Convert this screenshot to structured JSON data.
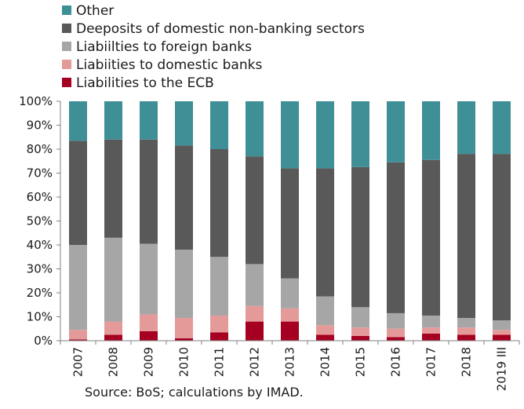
{
  "chart_data": {
    "type": "bar",
    "stacked": true,
    "percent": true,
    "categories": [
      "2007",
      "2008",
      "2009",
      "2010",
      "2011",
      "2012",
      "2013",
      "2014",
      "2015",
      "2016",
      "2017",
      "2018",
      "2019 III"
    ],
    "series": [
      {
        "name": "Liabilities to the ECB",
        "color": "#a50021",
        "values": [
          0.5,
          2.5,
          4,
          1,
          3.5,
          8,
          8,
          2.5,
          2,
          1.5,
          3,
          2.5,
          2.5
        ]
      },
      {
        "name": "Liabiities to domestic banks",
        "color": "#e59a9a",
        "values": [
          4,
          5.5,
          7,
          8.5,
          7,
          6.5,
          5.5,
          4,
          3.5,
          3.5,
          2.5,
          3,
          2
        ]
      },
      {
        "name": "Liabiilties to foreign banks",
        "color": "#a6a6a6",
        "values": [
          35.5,
          35,
          29.5,
          28.5,
          24.5,
          17.5,
          12.5,
          12,
          8.5,
          6.5,
          5,
          4,
          4
        ]
      },
      {
        "name": "Deeposits of domestic non-banking sectors",
        "color": "#595959",
        "values": [
          43.5,
          41,
          43.5,
          43.5,
          45,
          45,
          46,
          53.5,
          58.5,
          63,
          65,
          68.5,
          69.5
        ]
      },
      {
        "name": "Other",
        "color": "#3f8f96",
        "values": [
          16.5,
          16,
          16,
          18.5,
          20,
          23,
          28,
          28,
          27.5,
          25.5,
          24.5,
          22,
          22
        ]
      }
    ],
    "legend_order": [
      "Other",
      "Deeposits of domestic non-banking sectors",
      "Liabiilties to foreign banks",
      "Liabiities to domestic banks",
      "Liabilities to the ECB"
    ],
    "ylim": [
      0,
      100
    ],
    "yticks": [
      "0%",
      "10%",
      "20%",
      "30%",
      "40%",
      "50%",
      "60%",
      "70%",
      "80%",
      "90%",
      "100%"
    ],
    "grid": false,
    "legend_position": "top-left",
    "source": "Source: BoS; calculations by IMAD."
  }
}
